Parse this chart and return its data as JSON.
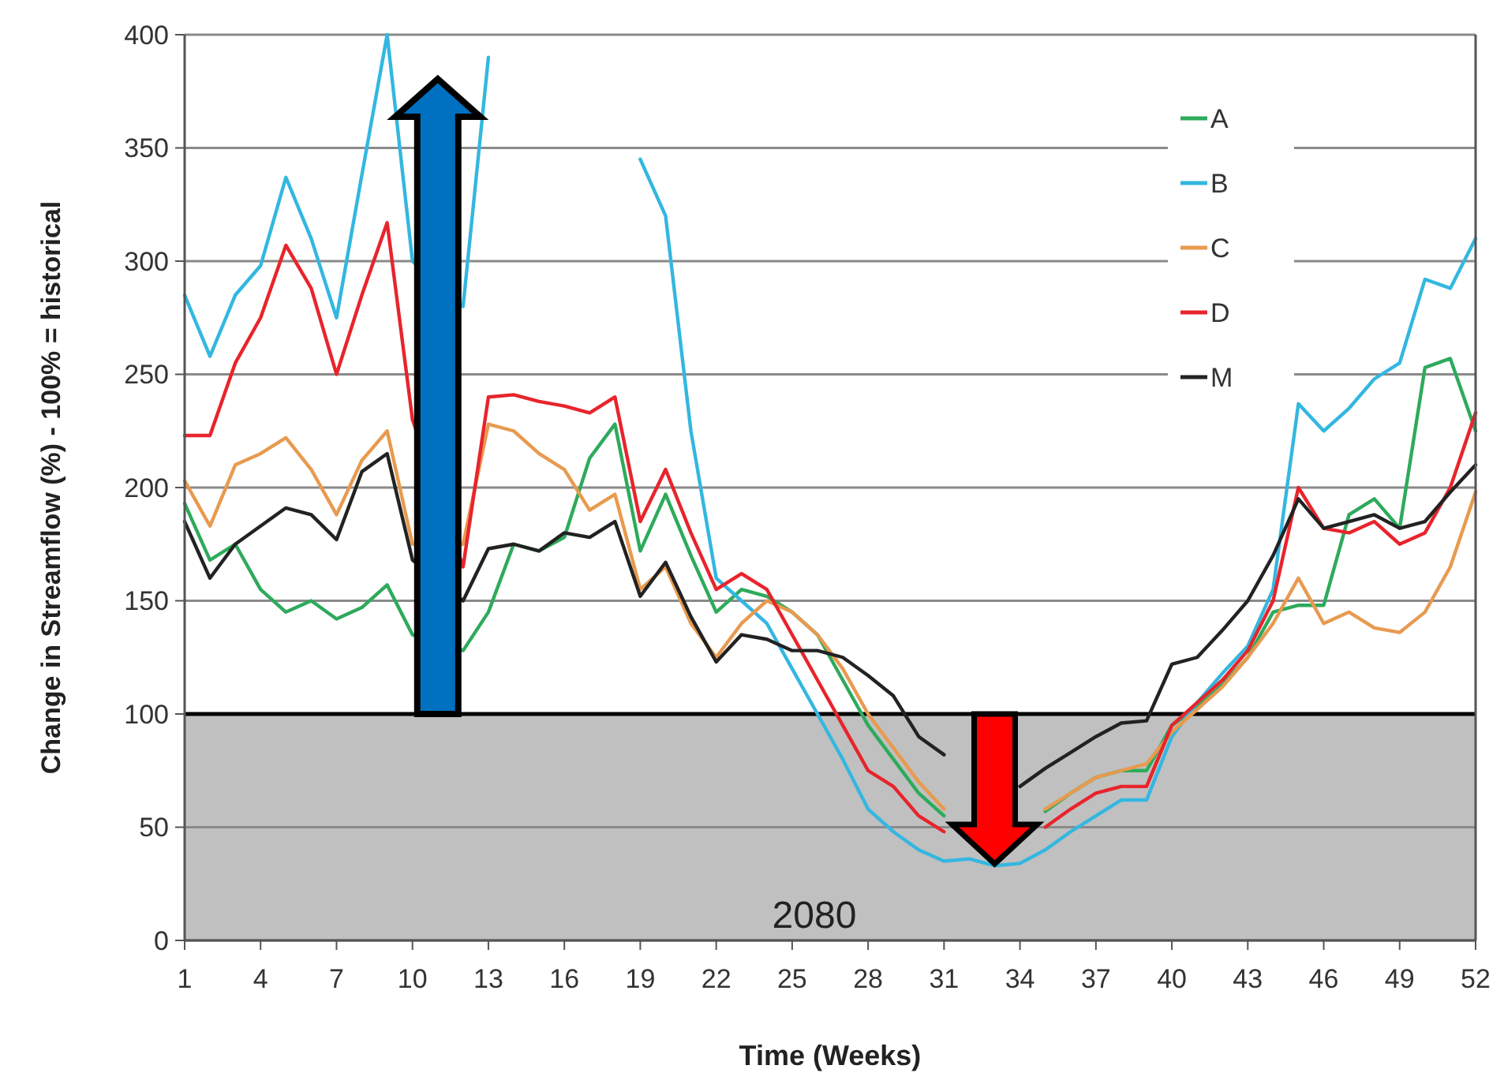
{
  "chart_data": {
    "type": "line",
    "xlabel": "Time (Weeks)",
    "ylabel": "Change in Streamflow (%)  - 100% = historical",
    "x": [
      1,
      2,
      3,
      4,
      5,
      6,
      7,
      8,
      9,
      10,
      12,
      13,
      14,
      15,
      16,
      17,
      18,
      19,
      20,
      21,
      22,
      23,
      24,
      25,
      26,
      27,
      28,
      29,
      30,
      31,
      32,
      33,
      34,
      35,
      36,
      37,
      38,
      39,
      40,
      41,
      42,
      43,
      44,
      45,
      46,
      47,
      48,
      49,
      50,
      51,
      52
    ],
    "series": [
      {
        "name": "A",
        "color": "#2eaa5c",
        "values": [
          193,
          168,
          175,
          155,
          145,
          150,
          142,
          147,
          157,
          135,
          128,
          145,
          175,
          172,
          178,
          213,
          228,
          172,
          197,
          170,
          145,
          155,
          152,
          145,
          135,
          115,
          95,
          80,
          65,
          55,
          null,
          null,
          null,
          57,
          65,
          72,
          75,
          75,
          95,
          103,
          113,
          125,
          145,
          148,
          148,
          188,
          195,
          182,
          253,
          257,
          225
        ]
      },
      {
        "name": "B",
        "color": "#33b7e0",
        "values": [
          285,
          258,
          285,
          298,
          337,
          310,
          275,
          338,
          400,
          300,
          280,
          390,
          null,
          null,
          null,
          null,
          null,
          345,
          320,
          225,
          160,
          150,
          140,
          120,
          100,
          80,
          58,
          48,
          40,
          35,
          36,
          33,
          34,
          40,
          48,
          55,
          62,
          62,
          90,
          105,
          118,
          130,
          155,
          237,
          225,
          235,
          248,
          255,
          292,
          288,
          310
        ]
      },
      {
        "name": "C",
        "color": "#e89a4f",
        "values": [
          203,
          183,
          210,
          215,
          222,
          208,
          188,
          212,
          225,
          175,
          175,
          228,
          225,
          215,
          208,
          190,
          197,
          155,
          165,
          140,
          125,
          140,
          150,
          145,
          135,
          120,
          100,
          85,
          70,
          58,
          null,
          null,
          null,
          58,
          65,
          72,
          75,
          78,
          92,
          102,
          112,
          125,
          140,
          160,
          140,
          145,
          138,
          136,
          145,
          165,
          198
        ]
      },
      {
        "name": "D",
        "color": "#e8242c",
        "values": [
          223,
          223,
          255,
          275,
          307,
          288,
          250,
          285,
          317,
          230,
          165,
          240,
          241,
          238,
          236,
          233,
          240,
          185,
          208,
          180,
          155,
          162,
          155,
          135,
          115,
          95,
          75,
          68,
          55,
          48,
          null,
          null,
          null,
          50,
          58,
          65,
          68,
          68,
          95,
          105,
          115,
          128,
          150,
          200,
          182,
          180,
          185,
          175,
          180,
          200,
          233
        ]
      },
      {
        "name": "M",
        "color": "#222222",
        "values": [
          185,
          160,
          175,
          183,
          191,
          188,
          177,
          207,
          215,
          168,
          150,
          173,
          175,
          172,
          180,
          178,
          185,
          152,
          167,
          143,
          123,
          135,
          133,
          128,
          128,
          125,
          117,
          108,
          90,
          82,
          null,
          null,
          68,
          76,
          83,
          90,
          96,
          97,
          122,
          125,
          137,
          150,
          170,
          195,
          182,
          185,
          188,
          182,
          185,
          198,
          210
        ]
      }
    ],
    "xlim": [
      1,
      52
    ],
    "xticks": [
      1,
      4,
      7,
      10,
      13,
      16,
      19,
      22,
      25,
      28,
      31,
      34,
      37,
      40,
      43,
      46,
      49,
      52
    ],
    "ylim": [
      0,
      400
    ],
    "yticks": [
      0,
      50,
      100,
      150,
      200,
      250,
      300,
      350,
      400
    ],
    "bands": [
      {
        "axis": "y",
        "from": 0,
        "to": 100,
        "label": "2080",
        "color": "#c0c0c0"
      }
    ],
    "ref_lines": [
      {
        "axis": "y",
        "value": 100,
        "color": "#000000"
      }
    ],
    "grid": "y",
    "legend": "top right",
    "marker": "none",
    "line_style": "solid"
  }
}
